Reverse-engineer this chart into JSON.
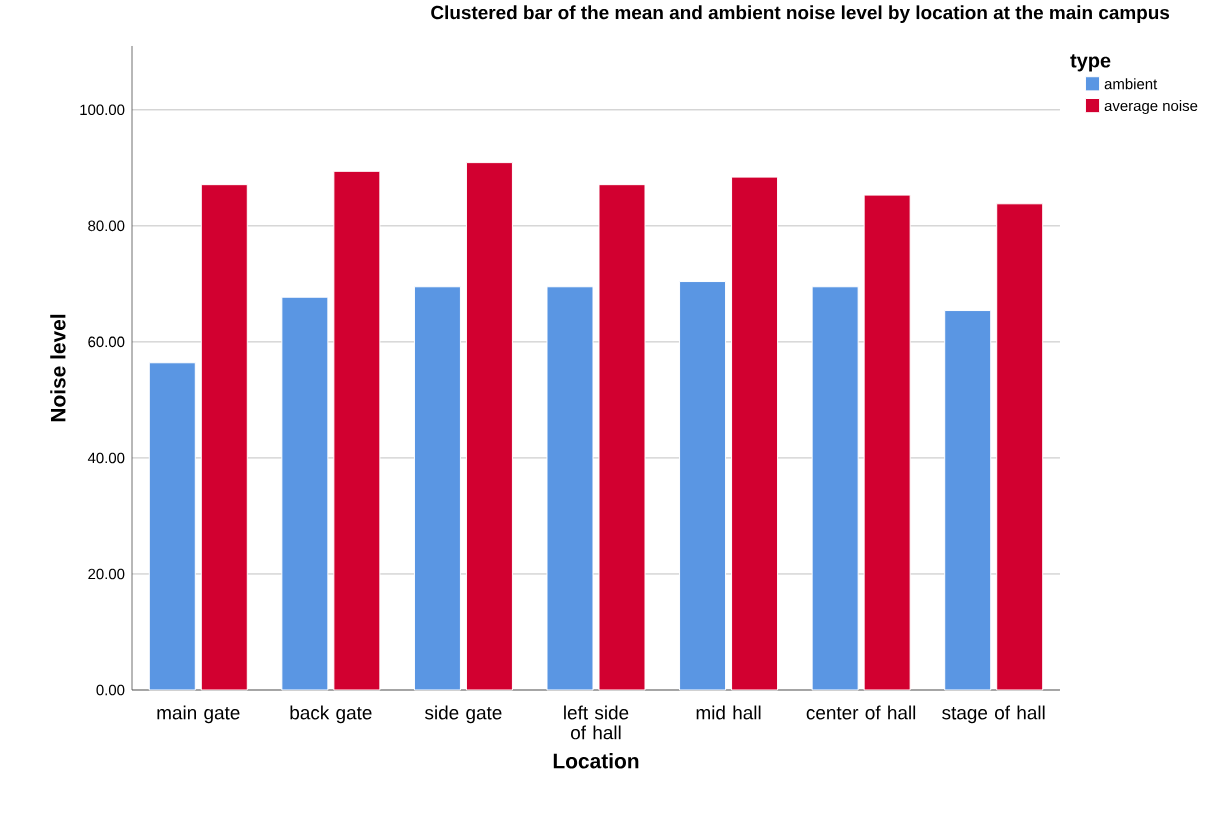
{
  "chart_data": {
    "type": "bar",
    "title": "Clustered bar of the mean  and ambient noise level by location at the main campus",
    "xlabel": "Location",
    "ylabel": "Noise level",
    "legend_title": "type",
    "categories": [
      "main gate",
      "back gate",
      "side gate",
      "left side of hall",
      "mid hall",
      "center of hall",
      "stage of hall"
    ],
    "series": [
      {
        "name": "ambient",
        "color": "#5a96e3",
        "values": [
          56.4,
          67.7,
          69.5,
          69.5,
          70.4,
          69.5,
          65.4
        ]
      },
      {
        "name": "average noise",
        "color": "#d20030",
        "values": [
          87.1,
          89.4,
          90.9,
          87.1,
          88.4,
          85.3,
          83.8
        ]
      }
    ],
    "ylim": [
      0,
      111
    ],
    "yticks": [
      {
        "value": 0,
        "label": "0.00"
      },
      {
        "value": 20,
        "label": "20.00"
      },
      {
        "value": 40,
        "label": "40.00"
      },
      {
        "value": 60,
        "label": "60.00"
      },
      {
        "value": 80,
        "label": "80.00"
      },
      {
        "value": 100,
        "label": "100.00"
      }
    ],
    "grid": "y",
    "legend": "top right"
  }
}
